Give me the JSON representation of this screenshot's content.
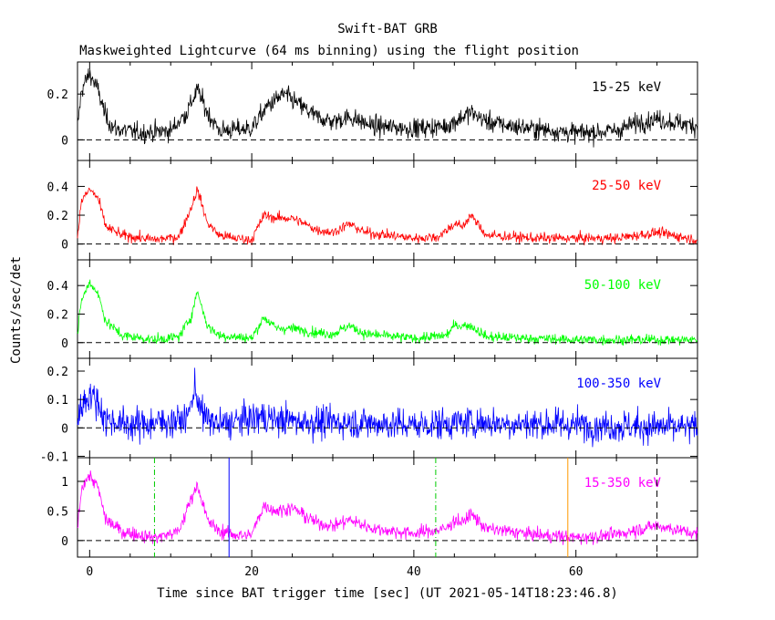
{
  "chart_data": {
    "type": "line",
    "title": "Swift-BAT GRB",
    "subtitle": "Maskweighted Lightcurve (64 ms binning) using the flight position",
    "xlabel": "Time since BAT trigger time [sec] (UT 2021-05-14T18:23:46.8)",
    "ylabel": "Counts/sec/det",
    "xlim": [
      -1.5,
      75
    ],
    "xticks": [
      0,
      20,
      40,
      60
    ],
    "xtick_labels": [
      "0",
      "20",
      "40",
      "60"
    ],
    "grid": false,
    "panels": [
      {
        "name": "15-25 keV",
        "color": "#000000",
        "ylim": [
          -0.09,
          0.34
        ],
        "yticks": [
          0,
          0.2
        ],
        "ytick_labels": [
          "0",
          "0.2"
        ],
        "noise": 0.03,
        "envelope": [
          [
            -1.5,
            0.05
          ],
          [
            -1,
            0.22
          ],
          [
            0,
            0.29
          ],
          [
            1,
            0.22
          ],
          [
            2,
            0.1
          ],
          [
            3,
            0.05
          ],
          [
            6,
            0.03
          ],
          [
            10,
            0.04
          ],
          [
            12,
            0.12
          ],
          [
            13.3,
            0.22
          ],
          [
            14.5,
            0.12
          ],
          [
            16,
            0.04
          ],
          [
            20,
            0.05
          ],
          [
            22,
            0.15
          ],
          [
            24,
            0.2
          ],
          [
            26,
            0.15
          ],
          [
            28,
            0.1
          ],
          [
            30,
            0.08
          ],
          [
            32,
            0.1
          ],
          [
            35,
            0.06
          ],
          [
            40,
            0.05
          ],
          [
            44,
            0.06
          ],
          [
            46,
            0.1
          ],
          [
            47,
            0.12
          ],
          [
            49,
            0.08
          ],
          [
            52,
            0.06
          ],
          [
            60,
            0.03
          ],
          [
            65,
            0.04
          ],
          [
            68,
            0.08
          ],
          [
            70,
            0.09
          ],
          [
            75,
            0.06
          ]
        ]
      },
      {
        "name": "25-50 keV",
        "color": "#ff0000",
        "ylim": [
          -0.11,
          0.58
        ],
        "yticks": [
          0,
          0.2,
          0.4
        ],
        "ytick_labels": [
          "0",
          "0.2",
          "0.4"
        ],
        "noise": 0.025,
        "envelope": [
          [
            -1.5,
            0.05
          ],
          [
            -1,
            0.3
          ],
          [
            0,
            0.38
          ],
          [
            1,
            0.32
          ],
          [
            2,
            0.12
          ],
          [
            4,
            0.06
          ],
          [
            8,
            0.03
          ],
          [
            11,
            0.05
          ],
          [
            12.5,
            0.25
          ],
          [
            13.3,
            0.38
          ],
          [
            14.5,
            0.15
          ],
          [
            16,
            0.06
          ],
          [
            18,
            0.04
          ],
          [
            20,
            0.03
          ],
          [
            21.5,
            0.2
          ],
          [
            23,
            0.18
          ],
          [
            25,
            0.18
          ],
          [
            28,
            0.1
          ],
          [
            30,
            0.08
          ],
          [
            32,
            0.14
          ],
          [
            34,
            0.08
          ],
          [
            40,
            0.04
          ],
          [
            43,
            0.05
          ],
          [
            45,
            0.14
          ],
          [
            46,
            0.12
          ],
          [
            47,
            0.2
          ],
          [
            49,
            0.06
          ],
          [
            55,
            0.04
          ],
          [
            65,
            0.04
          ],
          [
            70,
            0.08
          ],
          [
            72,
            0.06
          ],
          [
            75,
            0.03
          ]
        ]
      },
      {
        "name": "50-100 keV",
        "color": "#00ff00",
        "ylim": [
          -0.11,
          0.58
        ],
        "yticks": [
          0,
          0.2,
          0.4
        ],
        "ytick_labels": [
          "0",
          "0.2",
          "0.4"
        ],
        "noise": 0.025,
        "envelope": [
          [
            -1.5,
            0.05
          ],
          [
            -1,
            0.3
          ],
          [
            0,
            0.42
          ],
          [
            1,
            0.35
          ],
          [
            2,
            0.15
          ],
          [
            4,
            0.05
          ],
          [
            8,
            0.02
          ],
          [
            11,
            0.04
          ],
          [
            12.5,
            0.18
          ],
          [
            13.3,
            0.36
          ],
          [
            14.5,
            0.12
          ],
          [
            16,
            0.05
          ],
          [
            20,
            0.03
          ],
          [
            21.5,
            0.18
          ],
          [
            23,
            0.1
          ],
          [
            25,
            0.1
          ],
          [
            28,
            0.07
          ],
          [
            30,
            0.06
          ],
          [
            32,
            0.12
          ],
          [
            34,
            0.06
          ],
          [
            40,
            0.03
          ],
          [
            44,
            0.05
          ],
          [
            45,
            0.12
          ],
          [
            47,
            0.12
          ],
          [
            49,
            0.04
          ],
          [
            60,
            0.02
          ],
          [
            75,
            0.02
          ]
        ]
      },
      {
        "name": "100-350 keV",
        "color": "#0000ff",
        "ylim": [
          -0.105,
          0.245
        ],
        "yticks": [
          -0.1,
          0,
          0.1,
          0.2
        ],
        "ytick_labels": [
          "-0.1",
          "0",
          "0.1",
          "0.2"
        ],
        "noise": 0.04,
        "envelope": [
          [
            -1.5,
            0.02
          ],
          [
            -1,
            0.08
          ],
          [
            0,
            0.12
          ],
          [
            1,
            0.09
          ],
          [
            2,
            0.03
          ],
          [
            5,
            0.01
          ],
          [
            12,
            0.03
          ],
          [
            13,
            0.14
          ],
          [
            14,
            0.04
          ],
          [
            16,
            0.01
          ],
          [
            21,
            0.04
          ],
          [
            23,
            0.03
          ],
          [
            28,
            0.02
          ],
          [
            32,
            0.02
          ],
          [
            40,
            0.01
          ],
          [
            47,
            0.02
          ],
          [
            75,
            0.0
          ]
        ]
      },
      {
        "name": "15-350 keV",
        "color": "#ff00ff",
        "ylim": [
          -0.28,
          1.4
        ],
        "yticks": [
          0,
          0.5,
          1
        ],
        "ytick_labels": [
          "0",
          "0.5",
          "1"
        ],
        "noise": 0.08,
        "envelope": [
          [
            -1.5,
            0.2
          ],
          [
            -1,
            0.9
          ],
          [
            0,
            1.1
          ],
          [
            1,
            0.9
          ],
          [
            2,
            0.35
          ],
          [
            4,
            0.15
          ],
          [
            8,
            0.05
          ],
          [
            11,
            0.15
          ],
          [
            12.5,
            0.7
          ],
          [
            13.3,
            0.95
          ],
          [
            14.5,
            0.35
          ],
          [
            16,
            0.15
          ],
          [
            19,
            0.08
          ],
          [
            20,
            0.1
          ],
          [
            21.5,
            0.6
          ],
          [
            23,
            0.5
          ],
          [
            25,
            0.55
          ],
          [
            28,
            0.3
          ],
          [
            30,
            0.25
          ],
          [
            32,
            0.35
          ],
          [
            35,
            0.2
          ],
          [
            40,
            0.12
          ],
          [
            44,
            0.2
          ],
          [
            45,
            0.35
          ],
          [
            46,
            0.3
          ],
          [
            47,
            0.45
          ],
          [
            49,
            0.2
          ],
          [
            55,
            0.1
          ],
          [
            60,
            0.05
          ],
          [
            65,
            0.1
          ],
          [
            68,
            0.2
          ],
          [
            70,
            0.25
          ],
          [
            72,
            0.2
          ],
          [
            75,
            0.1
          ]
        ]
      }
    ],
    "markers": [
      {
        "x": 8.0,
        "color": "#00cc00",
        "style": "dash-dot"
      },
      {
        "x": 17.2,
        "color": "#0000ff",
        "style": "solid"
      },
      {
        "x": 42.7,
        "color": "#00cc00",
        "style": "dash-dot"
      },
      {
        "x": 59.0,
        "color": "#ff9900",
        "style": "solid"
      },
      {
        "x": 70.0,
        "color": "#000000",
        "style": "dashed"
      }
    ]
  }
}
